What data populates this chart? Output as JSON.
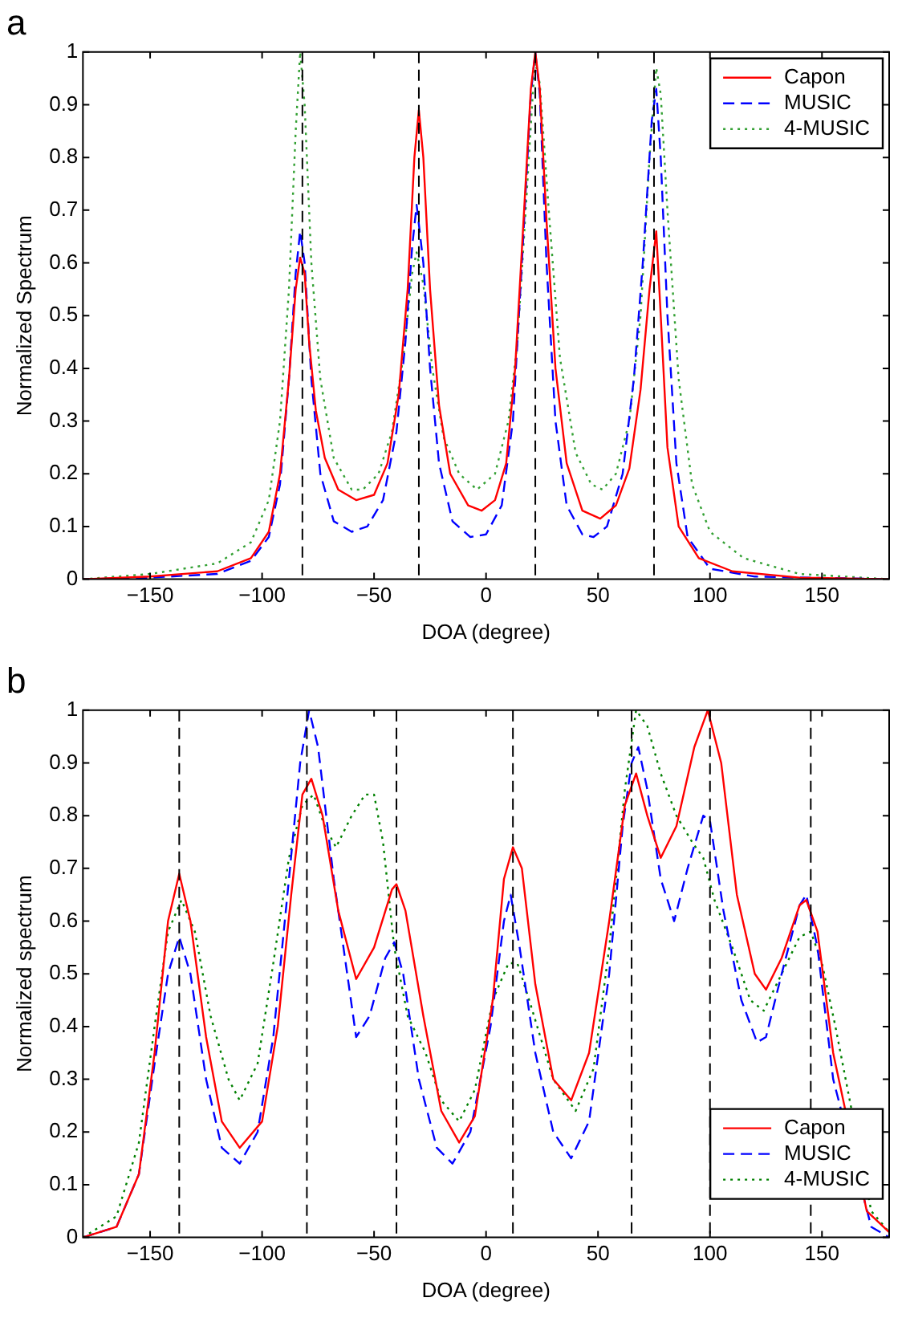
{
  "chart_data": [
    {
      "type": "line",
      "title": "a",
      "xlabel": "DOA (degree)",
      "ylabel": "Normalized Spectrum",
      "xlim": [
        -180,
        180
      ],
      "xticks": [
        -150,
        -100,
        -50,
        0,
        50,
        100,
        150
      ],
      "ylim": [
        0,
        1
      ],
      "yticks": [
        0,
        0.1,
        0.2,
        0.3,
        0.4,
        0.5,
        0.6,
        0.7,
        0.8,
        0.9,
        1
      ],
      "grid": false,
      "legend": "top right",
      "marker": "none",
      "ref_lines": [
        {
          "axis": "x",
          "value": -82,
          "color": "#000000",
          "line_style": "dashed"
        },
        {
          "axis": "x",
          "value": -30,
          "color": "#000000",
          "line_style": "dashed"
        },
        {
          "axis": "x",
          "value": 22,
          "color": "#000000",
          "line_style": "dashed"
        },
        {
          "axis": "x",
          "value": 75,
          "color": "#000000",
          "line_style": "dashed"
        }
      ],
      "series": [
        {
          "name": "Capon",
          "color": "#ff0000",
          "line_style": "solid",
          "x": [
            -180,
            -150,
            -120,
            -105,
            -97,
            -92,
            -88,
            -85,
            -83,
            -81,
            -79,
            -76,
            -72,
            -66,
            -58,
            -50,
            -44,
            -39,
            -35,
            -32,
            -30,
            -28,
            -25,
            -21,
            -16,
            -8,
            -2,
            4,
            9,
            13,
            17,
            20,
            22,
            24,
            27,
            31,
            36,
            43,
            51,
            58,
            64,
            69,
            73,
            76,
            78,
            81,
            86,
            95,
            110,
            140,
            180
          ],
          "values": [
            0,
            0.005,
            0.015,
            0.04,
            0.09,
            0.2,
            0.38,
            0.55,
            0.61,
            0.58,
            0.45,
            0.32,
            0.23,
            0.17,
            0.15,
            0.16,
            0.22,
            0.35,
            0.55,
            0.8,
            0.89,
            0.8,
            0.55,
            0.33,
            0.2,
            0.14,
            0.13,
            0.15,
            0.22,
            0.4,
            0.7,
            0.93,
            1.0,
            0.93,
            0.68,
            0.4,
            0.22,
            0.13,
            0.115,
            0.14,
            0.21,
            0.36,
            0.55,
            0.66,
            0.5,
            0.25,
            0.1,
            0.04,
            0.015,
            0.003,
            0
          ]
        },
        {
          "name": "MUSIC",
          "color": "#0000ff",
          "line_style": "dashed",
          "x": [
            -180,
            -150,
            -120,
            -105,
            -97,
            -92,
            -88,
            -85,
            -83,
            -81,
            -78,
            -74,
            -68,
            -60,
            -53,
            -46,
            -40,
            -36,
            -33,
            -31,
            -28,
            -25,
            -21,
            -15,
            -7,
            0,
            7,
            12,
            16,
            20,
            22,
            24,
            27,
            31,
            36,
            43,
            48,
            54,
            61,
            66,
            70,
            74,
            76,
            78,
            81,
            85,
            90,
            100,
            120,
            180
          ],
          "values": [
            0,
            0.003,
            0.01,
            0.035,
            0.08,
            0.18,
            0.38,
            0.58,
            0.66,
            0.6,
            0.38,
            0.2,
            0.11,
            0.09,
            0.1,
            0.15,
            0.28,
            0.45,
            0.63,
            0.71,
            0.6,
            0.4,
            0.22,
            0.11,
            0.08,
            0.085,
            0.14,
            0.3,
            0.6,
            0.92,
            1.0,
            0.92,
            0.6,
            0.3,
            0.14,
            0.085,
            0.08,
            0.1,
            0.2,
            0.38,
            0.6,
            0.87,
            0.93,
            0.8,
            0.5,
            0.22,
            0.08,
            0.02,
            0.005,
            0
          ]
        },
        {
          "name": "4-MUSIC",
          "color": "#33a033",
          "line_style": "dotted",
          "x": [
            -180,
            -150,
            -120,
            -105,
            -97,
            -92,
            -88,
            -85,
            -83,
            -81,
            -78,
            -74,
            -68,
            -60,
            -55,
            -48,
            -42,
            -37,
            -33,
            -31,
            -28,
            -24,
            -19,
            -12,
            -4,
            4,
            10,
            14,
            18,
            21,
            22,
            24,
            28,
            33,
            40,
            47,
            52,
            58,
            64,
            69,
            73,
            76,
            78,
            81,
            86,
            92,
            100,
            115,
            140,
            180
          ],
          "values": [
            0,
            0.01,
            0.03,
            0.07,
            0.15,
            0.3,
            0.55,
            0.85,
            1.0,
            0.9,
            0.6,
            0.38,
            0.23,
            0.17,
            0.17,
            0.2,
            0.28,
            0.42,
            0.58,
            0.62,
            0.56,
            0.4,
            0.27,
            0.2,
            0.17,
            0.2,
            0.3,
            0.45,
            0.72,
            0.93,
            0.98,
            0.94,
            0.7,
            0.42,
            0.24,
            0.18,
            0.17,
            0.2,
            0.3,
            0.5,
            0.8,
            0.97,
            0.92,
            0.7,
            0.38,
            0.18,
            0.09,
            0.04,
            0.01,
            0
          ]
        }
      ]
    },
    {
      "type": "line",
      "title": "b",
      "xlabel": "DOA (degree)",
      "ylabel": "Normalized spectrum",
      "xlim": [
        -180,
        180
      ],
      "xticks": [
        -150,
        -100,
        -50,
        0,
        50,
        100,
        150
      ],
      "ylim": [
        0,
        1
      ],
      "yticks": [
        0,
        0.1,
        0.2,
        0.3,
        0.4,
        0.5,
        0.6,
        0.7,
        0.8,
        0.9,
        1
      ],
      "grid": false,
      "legend": "bottom right",
      "marker": "none",
      "ref_lines": [
        {
          "axis": "x",
          "value": -137,
          "color": "#000000",
          "line_style": "dashed"
        },
        {
          "axis": "x",
          "value": -80,
          "color": "#000000",
          "line_style": "dashed"
        },
        {
          "axis": "x",
          "value": -40,
          "color": "#000000",
          "line_style": "dashed"
        },
        {
          "axis": "x",
          "value": 12,
          "color": "#000000",
          "line_style": "dashed"
        },
        {
          "axis": "x",
          "value": 65,
          "color": "#000000",
          "line_style": "dashed"
        },
        {
          "axis": "x",
          "value": 100,
          "color": "#000000",
          "line_style": "dashed"
        },
        {
          "axis": "x",
          "value": 145,
          "color": "#000000",
          "line_style": "dashed"
        }
      ],
      "series": [
        {
          "name": "Capon",
          "color": "#ff0000",
          "line_style": "solid",
          "x": [
            -180,
            -165,
            -155,
            -148,
            -142,
            -137,
            -132,
            -125,
            -118,
            -110,
            -100,
            -93,
            -87,
            -82,
            -78,
            -73,
            -66,
            -58,
            -50,
            -42,
            -40,
            -36,
            -28,
            -20,
            -12,
            -5,
            3,
            8,
            12,
            16,
            22,
            30,
            38,
            46,
            55,
            62,
            67,
            72,
            78,
            85,
            93,
            99,
            105,
            112,
            120,
            125,
            132,
            140,
            143,
            148,
            155,
            162,
            170,
            180
          ],
          "values": [
            0,
            0.02,
            0.12,
            0.35,
            0.6,
            0.69,
            0.6,
            0.38,
            0.22,
            0.17,
            0.22,
            0.4,
            0.65,
            0.84,
            0.87,
            0.8,
            0.62,
            0.49,
            0.55,
            0.66,
            0.67,
            0.62,
            0.42,
            0.24,
            0.18,
            0.23,
            0.45,
            0.68,
            0.74,
            0.7,
            0.48,
            0.3,
            0.26,
            0.35,
            0.6,
            0.82,
            0.88,
            0.8,
            0.72,
            0.78,
            0.93,
            1.0,
            0.9,
            0.65,
            0.5,
            0.47,
            0.53,
            0.63,
            0.64,
            0.58,
            0.35,
            null,
            0.05,
            0.01
          ]
        },
        {
          "name": "MUSIC",
          "color": "#0000ff",
          "line_style": "dashed",
          "x": [
            -180,
            -165,
            -155,
            -148,
            -142,
            -137,
            -132,
            -125,
            -118,
            -110,
            -102,
            -95,
            -88,
            -83,
            -79,
            -75,
            -68,
            -62,
            -58,
            -52,
            -45,
            -41,
            -37,
            -30,
            -22,
            -15,
            -7,
            2,
            8,
            11,
            15,
            22,
            30,
            38,
            46,
            55,
            61,
            65,
            68,
            72,
            78,
            84,
            90,
            97,
            100,
            106,
            114,
            121,
            125,
            132,
            140,
            143,
            148,
            155,
            163,
            172,
            180
          ],
          "values": [
            0,
            0.02,
            0.12,
            0.33,
            0.5,
            0.57,
            0.5,
            0.3,
            0.17,
            0.14,
            0.2,
            0.38,
            0.68,
            0.9,
            1.0,
            0.93,
            0.68,
            0.5,
            0.38,
            0.42,
            0.53,
            0.56,
            0.5,
            0.3,
            0.17,
            0.14,
            0.2,
            0.4,
            0.6,
            0.65,
            0.55,
            0.35,
            0.2,
            0.15,
            0.22,
            0.5,
            0.78,
            0.9,
            0.93,
            0.85,
            0.68,
            0.6,
            0.7,
            0.8,
            0.79,
            0.62,
            0.45,
            0.37,
            0.38,
            0.5,
            0.63,
            0.65,
            0.55,
            0.3,
            null,
            0.02,
            0
          ]
        },
        {
          "name": "4-MUSIC",
          "color": "#008000",
          "line_style": "dotted",
          "x": [
            -180,
            -165,
            -155,
            -148,
            -142,
            -136,
            -130,
            -123,
            -115,
            -110,
            -102,
            -95,
            -88,
            -82,
            -77,
            -72,
            -67,
            -60,
            -54,
            -50,
            -46,
            -41,
            -35,
            -27,
            -20,
            -12,
            -5,
            3,
            10,
            14,
            20,
            30,
            40,
            48,
            55,
            62,
            67,
            72,
            78,
            85,
            92,
            97,
            102,
            110,
            118,
            124,
            132,
            140,
            145,
            150,
            156,
            163,
            172,
            180
          ],
          "values": [
            0,
            0.04,
            0.18,
            0.4,
            0.58,
            0.64,
            0.58,
            0.42,
            0.3,
            0.26,
            0.33,
            0.52,
            0.72,
            0.82,
            0.84,
            0.78,
            0.74,
            0.8,
            0.84,
            0.84,
            0.75,
            0.55,
            0.42,
            0.35,
            0.26,
            0.22,
            0.28,
            0.45,
            0.52,
            0.52,
            0.44,
            0.3,
            0.24,
            0.32,
            0.55,
            0.85,
            1.0,
            0.97,
            0.88,
            0.8,
            0.75,
            0.72,
            0.64,
            0.55,
            0.45,
            0.43,
            0.5,
            0.57,
            0.58,
            0.52,
            0.4,
            null,
            0.05,
            0.01
          ]
        }
      ]
    }
  ]
}
